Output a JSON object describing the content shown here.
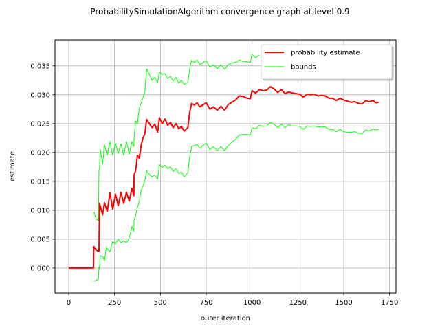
{
  "chart_data": {
    "type": "line",
    "title": "ProbabilitySimulationAlgorithm convergence graph at level 0.9",
    "xlabel": "outer iteration",
    "ylabel": "estimate",
    "xlim": [
      -75,
      1785
    ],
    "ylim": [
      -0.0043,
      0.0395
    ],
    "xticks": [
      0,
      250,
      500,
      750,
      1000,
      1250,
      1500,
      1750
    ],
    "xtick_labels": [
      "0",
      "250",
      "500",
      "750",
      "1000",
      "1250",
      "1500",
      "1750"
    ],
    "yticks": [
      0.0,
      0.005,
      0.01,
      0.015,
      0.02,
      0.025,
      0.03,
      0.035
    ],
    "ytick_labels": [
      "0.000",
      "0.005",
      "0.010",
      "0.015",
      "0.020",
      "0.025",
      "0.030",
      "0.035"
    ],
    "grid": true,
    "legend_position": "top-right",
    "series": [
      {
        "name": "probability estimate",
        "color": "#ff0000",
        "points": [
          [
            0,
            0.0
          ],
          [
            135,
            0.0
          ],
          [
            137,
            0.0037
          ],
          [
            155,
            0.003
          ],
          [
            165,
            0.0029
          ],
          [
            168,
            0.0112
          ],
          [
            185,
            0.0092
          ],
          [
            195,
            0.0113
          ],
          [
            210,
            0.0098
          ],
          [
            225,
            0.013
          ],
          [
            240,
            0.0102
          ],
          [
            255,
            0.0128
          ],
          [
            270,
            0.0108
          ],
          [
            285,
            0.0131
          ],
          [
            300,
            0.0112
          ],
          [
            315,
            0.0131
          ],
          [
            330,
            0.0116
          ],
          [
            345,
            0.0138
          ],
          [
            355,
            0.0125
          ],
          [
            357,
            0.0162
          ],
          [
            365,
            0.0168
          ],
          [
            375,
            0.0195
          ],
          [
            385,
            0.019
          ],
          [
            395,
            0.0212
          ],
          [
            405,
            0.0225
          ],
          [
            415,
            0.0232
          ],
          [
            425,
            0.0257
          ],
          [
            440,
            0.025
          ],
          [
            455,
            0.0243
          ],
          [
            470,
            0.0249
          ],
          [
            485,
            0.0235
          ],
          [
            495,
            0.026
          ],
          [
            510,
            0.025
          ],
          [
            525,
            0.0258
          ],
          [
            540,
            0.0247
          ],
          [
            555,
            0.0252
          ],
          [
            570,
            0.0243
          ],
          [
            585,
            0.025
          ],
          [
            600,
            0.0241
          ],
          [
            615,
            0.0245
          ],
          [
            630,
            0.0237
          ],
          [
            650,
            0.0243
          ],
          [
            660,
            0.027
          ],
          [
            670,
            0.0285
          ],
          [
            685,
            0.0282
          ],
          [
            700,
            0.0286
          ],
          [
            715,
            0.0279
          ],
          [
            730,
            0.0282
          ],
          [
            750,
            0.0286
          ],
          [
            770,
            0.0275
          ],
          [
            790,
            0.0279
          ],
          [
            810,
            0.0273
          ],
          [
            830,
            0.028
          ],
          [
            850,
            0.0273
          ],
          [
            870,
            0.0283
          ],
          [
            890,
            0.0287
          ],
          [
            910,
            0.0291
          ],
          [
            930,
            0.0298
          ],
          [
            950,
            0.0297
          ],
          [
            975,
            0.0294
          ],
          [
            990,
            0.0293
          ],
          [
            1000,
            0.0307
          ],
          [
            1020,
            0.0303
          ],
          [
            1040,
            0.0309
          ],
          [
            1060,
            0.0307
          ],
          [
            1080,
            0.0308
          ],
          [
            1100,
            0.0314
          ],
          [
            1120,
            0.031
          ],
          [
            1140,
            0.0304
          ],
          [
            1160,
            0.0309
          ],
          [
            1180,
            0.0302
          ],
          [
            1200,
            0.0305
          ],
          [
            1220,
            0.0303
          ],
          [
            1240,
            0.0302
          ],
          [
            1260,
            0.0301
          ],
          [
            1280,
            0.0296
          ],
          [
            1300,
            0.0301
          ],
          [
            1320,
            0.03
          ],
          [
            1340,
            0.0301
          ],
          [
            1360,
            0.0298
          ],
          [
            1380,
            0.0299
          ],
          [
            1400,
            0.0298
          ],
          [
            1420,
            0.0294
          ],
          [
            1440,
            0.0294
          ],
          [
            1460,
            0.029
          ],
          [
            1480,
            0.0294
          ],
          [
            1500,
            0.0291
          ],
          [
            1520,
            0.0289
          ],
          [
            1540,
            0.0287
          ],
          [
            1560,
            0.0288
          ],
          [
            1580,
            0.0285
          ],
          [
            1600,
            0.0284
          ],
          [
            1620,
            0.029
          ],
          [
            1640,
            0.0288
          ],
          [
            1660,
            0.029
          ],
          [
            1675,
            0.0286
          ],
          [
            1690,
            0.0287
          ]
        ]
      },
      {
        "name": "bounds",
        "color": "#00ff00",
        "points": [
          [
            137,
            0.0097
          ],
          [
            150,
            0.0085
          ],
          [
            162,
            0.0082
          ],
          [
            165,
            0.0169
          ],
          [
            168,
            0.0172
          ],
          [
            172,
            0.0205
          ],
          [
            185,
            0.018
          ],
          [
            195,
            0.0213
          ],
          [
            210,
            0.0195
          ],
          [
            225,
            0.0219
          ],
          [
            240,
            0.0195
          ],
          [
            255,
            0.0216
          ],
          [
            270,
            0.0198
          ],
          [
            285,
            0.0215
          ],
          [
            300,
            0.0195
          ],
          [
            315,
            0.0219
          ],
          [
            330,
            0.0197
          ],
          [
            345,
            0.0219
          ],
          [
            355,
            0.021
          ],
          [
            357,
            0.0225
          ],
          [
            365,
            0.0255
          ],
          [
            375,
            0.025
          ],
          [
            385,
            0.0277
          ],
          [
            395,
            0.0285
          ],
          [
            405,
            0.0295
          ],
          [
            415,
            0.0305
          ],
          [
            425,
            0.0345
          ],
          [
            440,
            0.0335
          ],
          [
            455,
            0.0325
          ],
          [
            470,
            0.033
          ],
          [
            485,
            0.0322
          ],
          [
            495,
            0.034
          ],
          [
            510,
            0.0335
          ],
          [
            525,
            0.0337
          ],
          [
            540,
            0.0328
          ],
          [
            555,
            0.0332
          ],
          [
            570,
            0.0324
          ],
          [
            585,
            0.033
          ],
          [
            600,
            0.032
          ],
          [
            615,
            0.0325
          ],
          [
            630,
            0.0318
          ],
          [
            650,
            0.0322
          ],
          [
            660,
            0.0345
          ],
          [
            670,
            0.036
          ],
          [
            685,
            0.0356
          ],
          [
            700,
            0.036
          ],
          [
            715,
            0.0352
          ],
          [
            730,
            0.0355
          ],
          [
            750,
            0.0359
          ],
          [
            770,
            0.0348
          ],
          [
            790,
            0.0352
          ],
          [
            810,
            0.0345
          ],
          [
            830,
            0.0352
          ],
          [
            850,
            0.0344
          ],
          [
            870,
            0.0352
          ],
          [
            890,
            0.0355
          ],
          [
            910,
            0.0356
          ],
          [
            930,
            0.036
          ],
          [
            950,
            0.0358
          ],
          [
            975,
            0.0357
          ],
          [
            990,
            0.0356
          ],
          [
            1000,
            0.037
          ],
          [
            1020,
            0.0364
          ],
          [
            1040,
            0.0369
          ]
        ]
      },
      {
        "name": "",
        "color": "#00ff00",
        "points": [
          [
            137,
            -0.0023
          ],
          [
            162,
            -0.0019
          ],
          [
            165,
            0.0002
          ],
          [
            168,
            -0.0001
          ],
          [
            172,
            0.0021
          ],
          [
            185,
            0.002
          ],
          [
            195,
            0.0013
          ],
          [
            205,
            0.0036
          ],
          [
            225,
            0.0028
          ],
          [
            240,
            0.0046
          ],
          [
            255,
            0.0042
          ],
          [
            270,
            0.005
          ],
          [
            285,
            0.0044
          ],
          [
            300,
            0.0047
          ],
          [
            315,
            0.0044
          ],
          [
            330,
            0.0052
          ],
          [
            345,
            0.0072
          ],
          [
            355,
            0.0063
          ],
          [
            357,
            0.0085
          ],
          [
            365,
            0.009
          ],
          [
            375,
            0.0106
          ],
          [
            385,
            0.0115
          ],
          [
            395,
            0.0134
          ],
          [
            405,
            0.0142
          ],
          [
            415,
            0.0151
          ],
          [
            425,
            0.0168
          ],
          [
            440,
            0.0162
          ],
          [
            455,
            0.0158
          ],
          [
            470,
            0.0161
          ],
          [
            485,
            0.0154
          ],
          [
            495,
            0.0179
          ],
          [
            510,
            0.0174
          ],
          [
            525,
            0.0178
          ],
          [
            540,
            0.0172
          ],
          [
            555,
            0.0175
          ],
          [
            570,
            0.0167
          ],
          [
            585,
            0.0172
          ],
          [
            600,
            0.0164
          ],
          [
            615,
            0.0166
          ],
          [
            630,
            0.0158
          ],
          [
            650,
            0.0165
          ],
          [
            660,
            0.0193
          ],
          [
            670,
            0.021
          ],
          [
            685,
            0.0212
          ],
          [
            700,
            0.0214
          ],
          [
            715,
            0.0207
          ],
          [
            730,
            0.0212
          ],
          [
            750,
            0.0216
          ],
          [
            770,
            0.0205
          ],
          [
            790,
            0.021
          ],
          [
            810,
            0.0203
          ],
          [
            830,
            0.021
          ],
          [
            850,
            0.0203
          ],
          [
            870,
            0.0212
          ],
          [
            890,
            0.0218
          ],
          [
            910,
            0.0223
          ],
          [
            930,
            0.023
          ],
          [
            950,
            0.0231
          ],
          [
            975,
            0.0231
          ],
          [
            990,
            0.023
          ],
          [
            1000,
            0.0243
          ],
          [
            1020,
            0.0241
          ],
          [
            1040,
            0.0247
          ],
          [
            1060,
            0.0245
          ],
          [
            1080,
            0.0246
          ],
          [
            1100,
            0.0252
          ],
          [
            1120,
            0.0249
          ],
          [
            1140,
            0.0243
          ],
          [
            1160,
            0.0249
          ],
          [
            1180,
            0.0243
          ],
          [
            1200,
            0.0248
          ],
          [
            1220,
            0.0246
          ],
          [
            1240,
            0.0246
          ],
          [
            1260,
            0.0245
          ],
          [
            1280,
            0.024
          ],
          [
            1300,
            0.0246
          ],
          [
            1320,
            0.0245
          ],
          [
            1340,
            0.0246
          ],
          [
            1360,
            0.0244
          ],
          [
            1380,
            0.0245
          ],
          [
            1400,
            0.0244
          ],
          [
            1420,
            0.024
          ],
          [
            1440,
            0.024
          ],
          [
            1460,
            0.0236
          ],
          [
            1480,
            0.024
          ],
          [
            1500,
            0.0236
          ],
          [
            1520,
            0.0235
          ],
          [
            1540,
            0.0235
          ],
          [
            1560,
            0.0236
          ],
          [
            1580,
            0.0233
          ],
          [
            1600,
            0.0233
          ],
          [
            1620,
            0.0239
          ],
          [
            1640,
            0.0237
          ],
          [
            1660,
            0.0241
          ],
          [
            1675,
            0.0239
          ],
          [
            1690,
            0.024
          ]
        ]
      },
      {
        "name": "",
        "color": "#00ff00",
        "points": [
          [
            1560,
            0.0335
          ],
          [
            1580,
            0.0333
          ],
          [
            1600,
            0.0331
          ],
          [
            1620,
            0.0338
          ],
          [
            1640,
            0.0337
          ]
        ]
      }
    ]
  }
}
